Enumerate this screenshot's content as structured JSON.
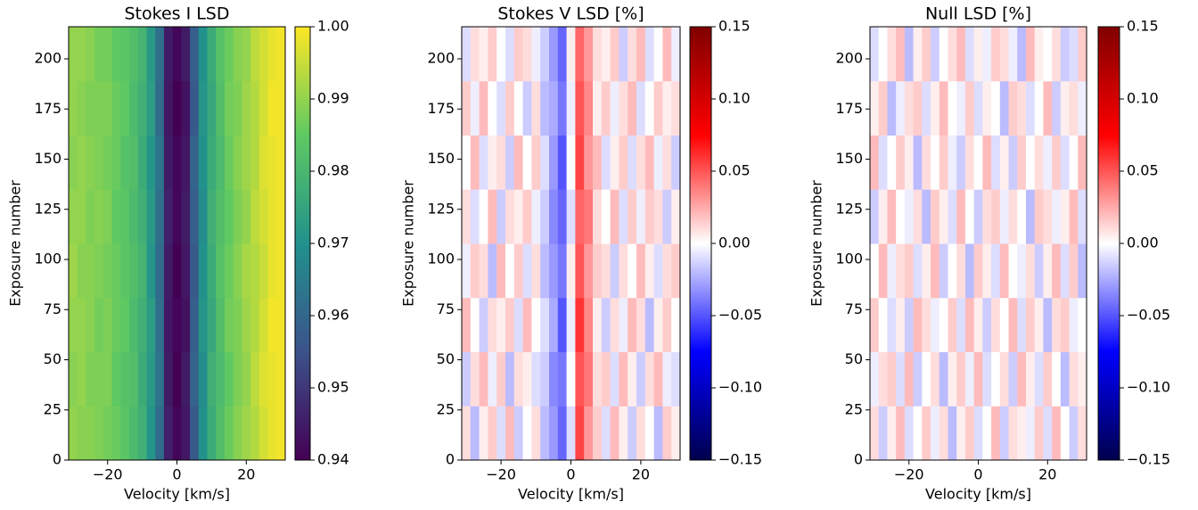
{
  "chart_data": [
    {
      "type": "heatmap",
      "title": "Stokes I LSD",
      "xlabel": "Velocity [km/s]",
      "ylabel": "Exposure number",
      "colormap": "viridis",
      "x": [
        -30,
        -27.5,
        -25,
        -22.5,
        -20,
        -17.5,
        -15,
        -12.5,
        -10,
        -7.5,
        -5,
        -2.5,
        0,
        2.5,
        5,
        7.5,
        10,
        12.5,
        15,
        17.5,
        20,
        22.5,
        25,
        27.5,
        30
      ],
      "y": [
        13.5,
        40.5,
        67.5,
        94.5,
        121.5,
        148.5,
        175.5,
        202.5
      ],
      "z": [
        [
          0.99,
          0.989,
          0.989,
          0.988,
          0.987,
          0.986,
          0.984,
          0.981,
          0.978,
          0.971,
          0.961,
          0.946,
          0.941,
          0.944,
          0.957,
          0.97,
          0.977,
          0.982,
          0.986,
          0.989,
          0.991,
          0.993,
          0.996,
          0.998,
          0.999
        ],
        [
          0.989,
          0.99,
          0.988,
          0.988,
          0.988,
          0.985,
          0.983,
          0.982,
          0.977,
          0.972,
          0.963,
          0.945,
          0.94,
          0.945,
          0.959,
          0.969,
          0.978,
          0.981,
          0.985,
          0.988,
          0.99,
          0.994,
          0.997,
          0.998,
          0.999
        ],
        [
          0.99,
          0.99,
          0.989,
          0.987,
          0.988,
          0.986,
          0.985,
          0.981,
          0.978,
          0.973,
          0.962,
          0.944,
          0.941,
          0.943,
          0.958,
          0.971,
          0.976,
          0.982,
          0.987,
          0.988,
          0.991,
          0.993,
          0.996,
          0.999,
          0.999
        ],
        [
          0.991,
          0.989,
          0.989,
          0.988,
          0.987,
          0.986,
          0.984,
          0.982,
          0.979,
          0.971,
          0.961,
          0.945,
          0.94,
          0.944,
          0.957,
          0.97,
          0.977,
          0.983,
          0.986,
          0.989,
          0.992,
          0.993,
          0.995,
          0.998,
          0.999
        ],
        [
          0.99,
          0.99,
          0.988,
          0.989,
          0.988,
          0.985,
          0.984,
          0.981,
          0.978,
          0.972,
          0.962,
          0.946,
          0.941,
          0.945,
          0.958,
          0.969,
          0.978,
          0.982,
          0.985,
          0.988,
          0.99,
          0.994,
          0.996,
          0.998,
          0.999
        ],
        [
          0.989,
          0.99,
          0.989,
          0.988,
          0.987,
          0.986,
          0.983,
          0.982,
          0.977,
          0.971,
          0.963,
          0.945,
          0.941,
          0.944,
          0.959,
          0.97,
          0.977,
          0.981,
          0.986,
          0.989,
          0.991,
          0.993,
          0.997,
          0.998,
          0.999
        ],
        [
          0.99,
          0.989,
          0.988,
          0.988,
          0.988,
          0.986,
          0.985,
          0.981,
          0.978,
          0.973,
          0.961,
          0.944,
          0.94,
          0.943,
          0.957,
          0.971,
          0.976,
          0.982,
          0.987,
          0.988,
          0.991,
          0.993,
          0.996,
          0.999,
          0.999
        ],
        [
          0.99,
          0.99,
          0.989,
          0.987,
          0.987,
          0.985,
          0.984,
          0.982,
          0.979,
          0.972,
          0.962,
          0.945,
          0.941,
          0.945,
          0.958,
          0.97,
          0.977,
          0.983,
          0.986,
          0.989,
          0.99,
          0.994,
          0.996,
          0.998,
          0.999
        ]
      ],
      "xlim": [
        -31.25,
        31.25
      ],
      "ylim": [
        0,
        216
      ],
      "xticks": [
        {
          "value": -20,
          "label": "−20"
        },
        0,
        20
      ],
      "yticks": [
        0,
        25,
        50,
        75,
        100,
        125,
        150,
        175,
        200
      ],
      "zlim": [
        0.94,
        1.0
      ],
      "zticks": [
        {
          "value": 0.94,
          "label": "0.94"
        },
        0.95,
        0.96,
        0.97,
        0.98,
        0.99,
        {
          "value": 1.0,
          "label": "1.00"
        }
      ]
    },
    {
      "type": "heatmap",
      "title": "Stokes V LSD [%]",
      "xlabel": "Velocity [km/s]",
      "ylabel": "Exposure number",
      "colormap": "seismic",
      "x": [
        -30,
        -27.5,
        -25,
        -22.5,
        -20,
        -17.5,
        -15,
        -12.5,
        -10,
        -7.5,
        -5,
        -2.5,
        0,
        2.5,
        5,
        7.5,
        10,
        12.5,
        15,
        17.5,
        20,
        22.5,
        25,
        27.5,
        30
      ],
      "y": [
        13.5,
        40.5,
        67.5,
        94.5,
        121.5,
        148.5,
        175.5,
        202.5
      ],
      "z": [
        [
          0.01,
          -0.02,
          0.005,
          0.015,
          -0.01,
          0.02,
          -0.015,
          0.0,
          0.01,
          -0.02,
          -0.03,
          -0.045,
          -0.01,
          0.055,
          0.03,
          0.015,
          -0.01,
          0.02,
          0.005,
          -0.015,
          0.01,
          0.0,
          -0.02,
          0.015,
          0.005
        ],
        [
          -0.015,
          0.01,
          0.02,
          -0.005,
          0.015,
          -0.02,
          0.01,
          0.005,
          -0.01,
          -0.015,
          -0.035,
          -0.04,
          0.0,
          0.05,
          0.04,
          0.01,
          0.015,
          -0.01,
          0.02,
          0.005,
          -0.015,
          0.01,
          0.02,
          -0.005,
          -0.01
        ],
        [
          0.02,
          0.0,
          -0.015,
          0.01,
          0.005,
          0.015,
          -0.01,
          0.02,
          0.0,
          -0.01,
          -0.025,
          -0.05,
          -0.005,
          0.06,
          0.035,
          0.005,
          -0.015,
          0.01,
          -0.005,
          0.02,
          0.01,
          -0.02,
          0.005,
          0.015,
          0.0
        ],
        [
          -0.005,
          0.015,
          0.01,
          -0.02,
          0.02,
          0.0,
          0.015,
          -0.01,
          0.01,
          -0.02,
          -0.03,
          -0.04,
          0.005,
          0.05,
          0.03,
          0.015,
          0.01,
          -0.015,
          0.01,
          0.0,
          0.02,
          0.005,
          -0.01,
          0.01,
          0.015
        ],
        [
          0.01,
          -0.01,
          0.0,
          0.02,
          -0.015,
          0.01,
          0.005,
          0.015,
          -0.005,
          -0.015,
          -0.035,
          -0.045,
          -0.01,
          0.045,
          0.04,
          0.01,
          0.0,
          0.02,
          -0.01,
          0.015,
          -0.005,
          0.015,
          0.01,
          -0.015,
          0.005
        ],
        [
          0.0,
          0.02,
          -0.01,
          0.005,
          0.01,
          -0.015,
          0.02,
          0.0,
          0.015,
          -0.01,
          -0.03,
          -0.05,
          0.0,
          0.055,
          0.03,
          0.02,
          -0.01,
          0.005,
          0.015,
          -0.01,
          0.01,
          0.02,
          -0.005,
          0.01,
          -0.015
        ],
        [
          0.015,
          -0.005,
          0.02,
          0.0,
          -0.01,
          0.015,
          0.0,
          -0.015,
          0.01,
          -0.02,
          -0.025,
          -0.04,
          -0.005,
          0.05,
          0.035,
          0.005,
          0.015,
          -0.005,
          0.01,
          0.02,
          -0.01,
          0.0,
          0.015,
          0.005,
          0.01
        ],
        [
          -0.01,
          0.01,
          0.005,
          0.015,
          0.0,
          -0.01,
          0.015,
          0.01,
          -0.005,
          -0.015,
          -0.03,
          -0.045,
          0.005,
          0.045,
          0.03,
          0.01,
          0.005,
          0.015,
          -0.015,
          0.01,
          0.02,
          -0.01,
          0.0,
          0.02,
          -0.005
        ]
      ],
      "xlim": [
        -31.25,
        31.25
      ],
      "ylim": [
        0,
        216
      ],
      "xticks": [
        {
          "value": -20,
          "label": "−20"
        },
        0,
        20
      ],
      "yticks": [
        0,
        25,
        50,
        75,
        100,
        125,
        150,
        175,
        200
      ],
      "zlim": [
        -0.15,
        0.15
      ],
      "zticks": [
        {
          "value": -0.15,
          "label": "−0.15"
        },
        {
          "value": -0.1,
          "label": "−0.10"
        },
        {
          "value": -0.05,
          "label": "−0.05"
        },
        {
          "value": 0,
          "label": "0.00"
        },
        0.05,
        {
          "value": 0.1,
          "label": "0.10"
        },
        0.15
      ]
    },
    {
      "type": "heatmap",
      "title": "Null LSD [%]",
      "xlabel": "Velocity [km/s]",
      "ylabel": "Exposure number",
      "colormap": "seismic",
      "x": [
        -30,
        -27.5,
        -25,
        -22.5,
        -20,
        -17.5,
        -15,
        -12.5,
        -10,
        -7.5,
        -5,
        -2.5,
        0,
        2.5,
        5,
        7.5,
        10,
        12.5,
        15,
        17.5,
        20,
        22.5,
        25,
        27.5,
        30
      ],
      "y": [
        13.5,
        40.5,
        67.5,
        94.5,
        121.5,
        148.5,
        175.5,
        202.5
      ],
      "z": [
        [
          0.01,
          -0.015,
          0.005,
          0.02,
          -0.01,
          0.0,
          0.015,
          -0.005,
          0.01,
          -0.02,
          0.005,
          0.015,
          -0.01,
          0.0,
          0.02,
          -0.015,
          0.01,
          0.005,
          -0.005,
          0.015,
          -0.01,
          0.02,
          0.0,
          -0.015,
          0.01
        ],
        [
          -0.005,
          0.01,
          0.015,
          -0.01,
          0.02,
          -0.015,
          0.0,
          0.01,
          -0.02,
          0.005,
          0.015,
          -0.005,
          0.02,
          -0.01,
          0.0,
          0.01,
          -0.015,
          0.02,
          0.005,
          -0.01,
          0.015,
          0.0,
          -0.02,
          0.01,
          0.005
        ],
        [
          0.015,
          0.0,
          -0.01,
          0.005,
          -0.015,
          0.02,
          0.01,
          -0.005,
          0.0,
          0.015,
          -0.01,
          0.02,
          0.005,
          -0.015,
          0.01,
          0.0,
          0.02,
          -0.01,
          0.015,
          0.005,
          -0.02,
          0.01,
          0.015,
          -0.005,
          0.0
        ],
        [
          0.0,
          0.02,
          -0.005,
          0.01,
          0.015,
          -0.01,
          0.005,
          0.02,
          -0.015,
          0.0,
          0.01,
          -0.02,
          0.015,
          0.005,
          -0.01,
          0.02,
          0.0,
          -0.005,
          0.01,
          -0.015,
          0.005,
          0.02,
          -0.01,
          0.015,
          -0.02
        ],
        [
          -0.015,
          0.005,
          0.02,
          0.0,
          -0.005,
          0.01,
          -0.02,
          0.015,
          0.005,
          -0.01,
          0.02,
          0.0,
          -0.015,
          0.01,
          0.015,
          -0.005,
          0.01,
          0.0,
          -0.02,
          0.015,
          0.01,
          -0.005,
          0.005,
          0.02,
          -0.01
        ],
        [
          0.02,
          -0.01,
          0.0,
          0.015,
          0.005,
          -0.02,
          0.01,
          0.0,
          0.015,
          -0.005,
          -0.015,
          0.01,
          0.0,
          0.02,
          -0.01,
          0.005,
          -0.015,
          0.015,
          0.0,
          0.01,
          -0.005,
          0.015,
          -0.01,
          0.0,
          0.02
        ],
        [
          0.005,
          0.015,
          -0.02,
          -0.005,
          0.01,
          0.015,
          -0.01,
          0.005,
          0.02,
          0.0,
          -0.005,
          0.015,
          -0.01,
          0.005,
          0.0,
          -0.02,
          0.015,
          0.01,
          -0.01,
          0.0,
          0.02,
          -0.015,
          0.005,
          0.01,
          -0.005
        ],
        [
          -0.01,
          0.0,
          0.01,
          0.02,
          -0.02,
          0.005,
          0.015,
          -0.015,
          0.0,
          0.01,
          0.02,
          -0.01,
          0.005,
          -0.005,
          0.015,
          0.01,
          -0.005,
          -0.02,
          0.02,
          0.005,
          0.0,
          0.01,
          -0.015,
          -0.01,
          0.015
        ]
      ],
      "xlim": [
        -31.25,
        31.25
      ],
      "ylim": [
        0,
        216
      ],
      "xticks": [
        {
          "value": -20,
          "label": "−20"
        },
        0,
        20
      ],
      "yticks": [
        0,
        25,
        50,
        75,
        100,
        125,
        150,
        175,
        200
      ],
      "zlim": [
        -0.15,
        0.15
      ],
      "zticks": [
        {
          "value": -0.15,
          "label": "−0.15"
        },
        {
          "value": -0.1,
          "label": "−0.10"
        },
        {
          "value": -0.05,
          "label": "−0.05"
        },
        {
          "value": 0,
          "label": "0.00"
        },
        0.05,
        {
          "value": 0.1,
          "label": "0.10"
        },
        0.15
      ]
    }
  ]
}
